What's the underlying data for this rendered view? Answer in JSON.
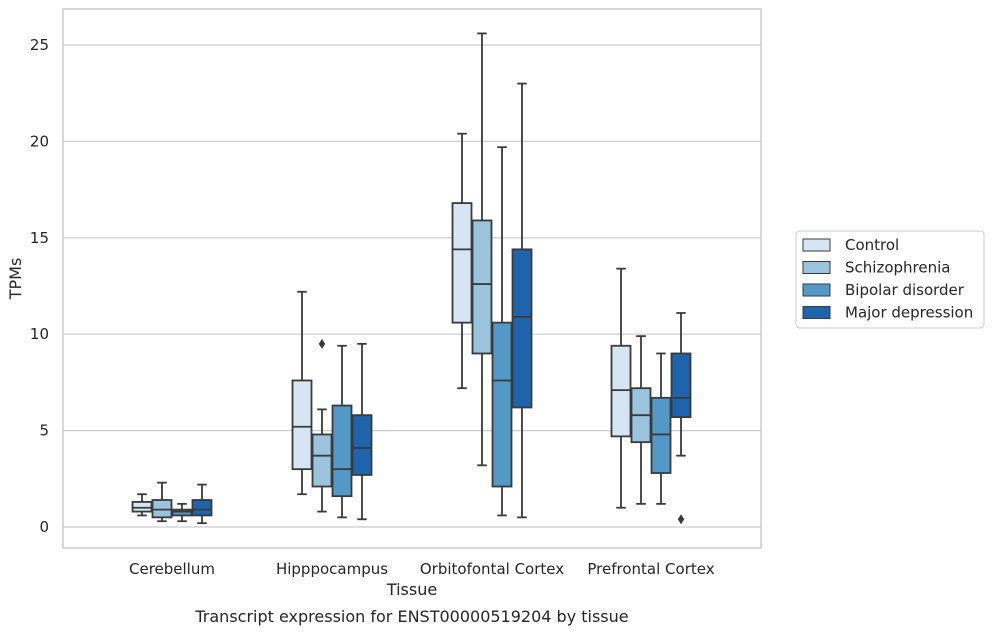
{
  "chart_data": {
    "type": "box",
    "title": "",
    "caption": "Transcript expression for ENST00000519204 by tissue",
    "xlabel": "Tissue",
    "ylabel": "TPMs",
    "ylim": [
      -1.1,
      26.9
    ],
    "yticks": [
      0,
      5,
      10,
      15,
      20,
      25
    ],
    "grid": "horizontal",
    "legend_position": "right",
    "categories": [
      "Cerebellum",
      "Hipppocampus",
      "Orbitofontal Cortex",
      "Prefrontal Cortex"
    ],
    "series": [
      {
        "name": "Control",
        "color": "#d6e5f3",
        "boxes": [
          {
            "whislo": 0.6,
            "q1": 0.8,
            "med": 1.0,
            "q3": 1.3,
            "whishi": 1.7,
            "fliers": []
          },
          {
            "whislo": 1.7,
            "q1": 3.0,
            "med": 5.2,
            "q3": 7.6,
            "whishi": 12.2,
            "fliers": []
          },
          {
            "whislo": 7.2,
            "q1": 10.6,
            "med": 14.4,
            "q3": 16.8,
            "whishi": 20.4,
            "fliers": []
          },
          {
            "whislo": 1.0,
            "q1": 4.7,
            "med": 7.1,
            "q3": 9.4,
            "whishi": 13.4,
            "fliers": []
          }
        ]
      },
      {
        "name": "Schizophrenia",
        "color": "#9ac3dd",
        "boxes": [
          {
            "whislo": 0.3,
            "q1": 0.5,
            "med": 0.9,
            "q3": 1.4,
            "whishi": 2.3,
            "fliers": []
          },
          {
            "whislo": 0.8,
            "q1": 2.1,
            "med": 3.7,
            "q3": 4.8,
            "whishi": 6.1,
            "fliers": [
              9.5
            ]
          },
          {
            "whislo": 3.2,
            "q1": 9.0,
            "med": 12.6,
            "q3": 15.9,
            "whishi": 25.6,
            "fliers": []
          },
          {
            "whislo": 1.2,
            "q1": 4.4,
            "med": 5.8,
            "q3": 7.2,
            "whishi": 9.9,
            "fliers": []
          }
        ]
      },
      {
        "name": "Bipolar disorder",
        "color": "#5399c6",
        "boxes": [
          {
            "whislo": 0.3,
            "q1": 0.6,
            "med": 0.8,
            "q3": 0.9,
            "whishi": 1.2,
            "fliers": []
          },
          {
            "whislo": 0.5,
            "q1": 1.6,
            "med": 3.0,
            "q3": 6.3,
            "whishi": 9.4,
            "fliers": []
          },
          {
            "whislo": 0.6,
            "q1": 2.1,
            "med": 7.6,
            "q3": 10.6,
            "whishi": 19.7,
            "fliers": []
          },
          {
            "whislo": 1.2,
            "q1": 2.8,
            "med": 4.8,
            "q3": 6.7,
            "whishi": 9.0,
            "fliers": []
          }
        ]
      },
      {
        "name": "Major depression",
        "color": "#1d64aa",
        "boxes": [
          {
            "whislo": 0.2,
            "q1": 0.6,
            "med": 0.9,
            "q3": 1.4,
            "whishi": 2.2,
            "fliers": []
          },
          {
            "whislo": 0.4,
            "q1": 2.7,
            "med": 4.1,
            "q3": 5.8,
            "whishi": 9.5,
            "fliers": []
          },
          {
            "whislo": 0.5,
            "q1": 6.2,
            "med": 10.9,
            "q3": 14.4,
            "whishi": 23.0,
            "fliers": []
          },
          {
            "whislo": 3.7,
            "q1": 5.7,
            "med": 6.7,
            "q3": 9.0,
            "whishi": 11.1,
            "fliers": [
              0.4
            ]
          }
        ]
      }
    ]
  },
  "colors": {
    "background": "#ffffff",
    "grid": "#cccccc",
    "frame": "#cccccc",
    "box_edge": "#3a3a3a",
    "text": "#262626"
  }
}
